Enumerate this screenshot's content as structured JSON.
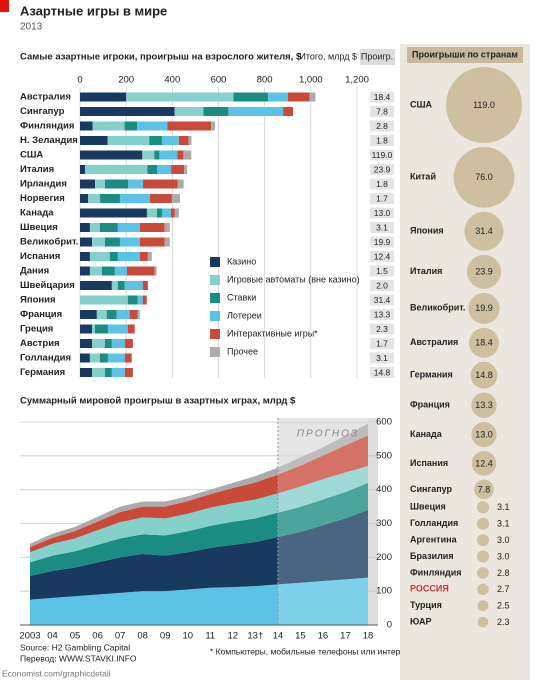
{
  "header": {
    "title": "Азартные игры в мире",
    "subtitle": "2013"
  },
  "chart_data": [
    {
      "type": "bar",
      "orientation": "horizontal",
      "stacked": true,
      "title": "Самые азартные игроки, проигрыш на взрослого жителя, $",
      "categories": [
        "Австралия",
        "Сингапур",
        "Финляндия",
        "Н. Зеландия",
        "США",
        "Италия",
        "Ирландия",
        "Норвегия",
        "Канада",
        "Швеция",
        "Великобрит.",
        "Испания",
        "Дания",
        "Швейцария",
        "Япония",
        "Франция",
        "Греция",
        "Австрия",
        "Голландия",
        "Германия"
      ],
      "series": [
        {
          "name": "Казино",
          "color": "#173a5e",
          "values": [
            200,
            410,
            55,
            120,
            270,
            22,
            65,
            35,
            290,
            43,
            52,
            43,
            43,
            138,
            0,
            73,
            52,
            52,
            43,
            52
          ]
        },
        {
          "name": "Игровые автоматы (вне казино)",
          "color": "#86d0cc",
          "values": [
            465,
            125,
            138,
            180,
            52,
            270,
            43,
            52,
            43,
            43,
            56,
            86,
            52,
            26,
            207,
            43,
            13,
            56,
            43,
            56
          ]
        },
        {
          "name": "Ставки",
          "color": "#1a8c82",
          "values": [
            150,
            108,
            55,
            55,
            22,
            43,
            100,
            86,
            22,
            78,
            65,
            35,
            56,
            30,
            43,
            43,
            56,
            30,
            35,
            30
          ]
        },
        {
          "name": "Лотереи",
          "color": "#5cc3e6",
          "values": [
            85,
            237,
            130,
            73,
            78,
            60,
            65,
            130,
            39,
            95,
            86,
            95,
            52,
            78,
            22,
            56,
            86,
            56,
            73,
            56
          ]
        },
        {
          "name": "Интерактивные игры*",
          "color": "#c9493a",
          "values": [
            95,
            43,
            190,
            43,
            26,
            56,
            150,
            95,
            17,
            108,
            108,
            35,
            120,
            22,
            17,
            35,
            30,
            35,
            30,
            35
          ]
        },
        {
          "name": "Прочее",
          "color": "#ababab",
          "values": [
            25,
            0,
            17,
            12,
            34,
            13,
            26,
            35,
            17,
            22,
            22,
            17,
            9,
            0,
            0,
            9,
            0,
            0,
            0,
            0
          ]
        }
      ],
      "xlim": [
        0,
        1200
      ],
      "xticks": [
        0,
        200,
        400,
        600,
        800,
        {
          "value": 1000,
          "label": "1,000"
        },
        {
          "value": 1200,
          "label": "1,200"
        }
      ],
      "grid": true,
      "totals": {
        "title": "Итого, млрд $",
        "column": "Проигр.",
        "values": [
          18.4,
          7.8,
          2.8,
          1.8,
          119.0,
          23.9,
          1.8,
          1.7,
          13.0,
          3.1,
          19.9,
          12.4,
          1.5,
          2.0,
          31.4,
          13.3,
          2.3,
          1.7,
          3.1,
          14.8
        ],
        "value_labels": [
          "18.4",
          "7.8",
          "2.8",
          "1.8",
          "119.0",
          "23.9",
          "1.8",
          "1.7",
          "13.0",
          "3.1",
          "19.9",
          "12.4",
          "1.5",
          "2.0",
          "31.4",
          "13.3",
          "2.3",
          "1.7",
          "3.1",
          "14.8"
        ]
      }
    },
    {
      "type": "bubble_list",
      "title": "Проигрыши по странам",
      "categories": [
        "США",
        "Китай",
        "Япония",
        "Италия",
        "Великобрит.",
        "Австралия",
        "Германия",
        "Франция",
        "Канада",
        "Испания",
        "Сингапур",
        "Швеция",
        "Голландия",
        "Аргентина",
        "Бразилия",
        "Финляндия",
        "РОССИЯ",
        "Турция",
        "ЮАР"
      ],
      "values": [
        119.0,
        76.0,
        31.4,
        23.9,
        19.9,
        18.4,
        14.8,
        13.3,
        13.0,
        12.4,
        7.8,
        3.1,
        3.1,
        3.0,
        3.0,
        2.8,
        2.7,
        2.5,
        2.3
      ],
      "value_labels": [
        "119.0",
        "76.0",
        "31.4",
        "23.9",
        "19.9",
        "18.4",
        "14.8",
        "13.3",
        "13.0",
        "12.4",
        "7.8",
        "3.1",
        "3.1",
        "3.0",
        "3.0",
        "2.8",
        "2.7",
        "2.5",
        "2.3"
      ],
      "color": "#cdbf9f",
      "label_colors": [
        null,
        null,
        null,
        null,
        null,
        null,
        null,
        null,
        null,
        null,
        null,
        null,
        null,
        null,
        null,
        null,
        "#d0312d",
        null,
        null
      ]
    },
    {
      "type": "area",
      "stacked": true,
      "title": "Суммарный мировой проигрыш в азартных играх, млрд $",
      "categories": [
        "2003",
        "04",
        "05",
        "06",
        "07",
        "08",
        "09",
        "10",
        "11",
        "12",
        "13†",
        "14",
        "15",
        "16",
        "17",
        "18"
      ],
      "series": [
        {
          "color": "#5cc3e6",
          "values": [
            75,
            80,
            85,
            90,
            95,
            100,
            100,
            105,
            110,
            112,
            115,
            120,
            125,
            130,
            135,
            140
          ]
        },
        {
          "color": "#173a5e",
          "values": [
            70,
            80,
            85,
            95,
            105,
            110,
            105,
            110,
            118,
            125,
            130,
            140,
            150,
            165,
            180,
            200
          ]
        },
        {
          "color": "#1a8c82",
          "values": [
            40,
            45,
            48,
            52,
            56,
            58,
            60,
            62,
            65,
            68,
            70,
            72,
            74,
            76,
            78,
            80
          ]
        },
        {
          "color": "#86d0cc",
          "values": [
            30,
            35,
            38,
            43,
            48,
            50,
            50,
            52,
            54,
            55,
            56,
            57,
            60,
            60,
            58,
            50
          ]
        },
        {
          "color": "#c9493a",
          "values": [
            15,
            18,
            22,
            26,
            30,
            32,
            35,
            37,
            40,
            45,
            50,
            55,
            62,
            70,
            80,
            90
          ]
        },
        {
          "color": "#ababab",
          "values": [
            10,
            12,
            12,
            14,
            16,
            15,
            15,
            14,
            13,
            15,
            19,
            21,
            24,
            24,
            29,
            35
          ]
        }
      ],
      "ylim": [
        0,
        600
      ],
      "yticks": [
        0,
        100,
        200,
        300,
        400,
        500,
        600
      ],
      "grid": true,
      "y_axis_side": "right",
      "forecast": {
        "label": "ПРОГНОЗ",
        "start": "14"
      }
    }
  ],
  "footer": {
    "source": "Source: H2 Gambling Capital",
    "translation": "Перевод: WWW.STAVKI.INFO",
    "site": "Economist.com/graphicdetail",
    "note": "* Компьютеры, мобильные телефоны или интерактивное ТВ"
  }
}
